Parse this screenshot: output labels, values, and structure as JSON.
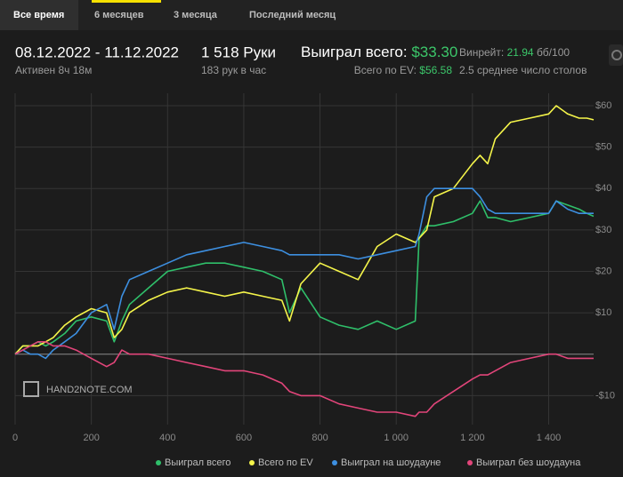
{
  "tabs": [
    "Все время",
    "6 месяцев",
    "3 месяца",
    "Последний месяц"
  ],
  "header": {
    "date_range": "08.12.2022 - 11.12.2022",
    "active": "Активен 8ч 18м",
    "hands": "1 518 Руки",
    "hands_per_hour": "183 рук в час",
    "won_label": "Выиграл всего:",
    "won_value": "$33.30",
    "ev_label": "Всего по EV:",
    "ev_value": "$56.58",
    "winrate_label": "Винрейт:",
    "winrate_value": "21.94",
    "winrate_unit": "бб/100",
    "tables": "2.5 среднее число столов"
  },
  "chart_data": {
    "type": "line",
    "watermark": "HAND2NOTE.COM",
    "x": [
      0,
      20,
      40,
      60,
      80,
      100,
      130,
      160,
      200,
      240,
      260,
      280,
      300,
      350,
      400,
      450,
      500,
      550,
      600,
      650,
      700,
      720,
      750,
      800,
      850,
      900,
      950,
      1000,
      1050,
      1060,
      1080,
      1100,
      1150,
      1200,
      1220,
      1240,
      1260,
      1300,
      1350,
      1400,
      1420,
      1450,
      1480,
      1500,
      1518
    ],
    "series": [
      {
        "name": "Выиграл всего",
        "color": "#2fbf6a",
        "values": [
          0,
          2,
          2,
          3,
          2,
          3,
          5,
          8,
          9,
          8,
          3,
          8,
          12,
          16,
          20,
          21,
          22,
          22,
          21,
          20,
          18,
          10,
          16,
          9,
          7,
          6,
          8,
          6,
          8,
          28,
          31,
          31,
          32,
          34,
          37,
          33,
          33,
          32,
          33,
          34,
          37,
          36,
          35,
          34,
          33.3
        ]
      },
      {
        "name": "Всего по EV",
        "color": "#f5f54a",
        "values": [
          0,
          2,
          2,
          2,
          3,
          4,
          7,
          9,
          11,
          10,
          4,
          6,
          10,
          13,
          15,
          16,
          15,
          14,
          15,
          14,
          13,
          8,
          17,
          22,
          20,
          18,
          26,
          29,
          27,
          28,
          30,
          38,
          40,
          46,
          48,
          46,
          52,
          56,
          57,
          58,
          60,
          58,
          57,
          57,
          56.58
        ]
      },
      {
        "name": "Выиграл на шоудауне",
        "color": "#3d8fe0",
        "values": [
          0,
          1,
          0,
          0,
          -1,
          1,
          3,
          5,
          10,
          12,
          6,
          14,
          18,
          20,
          22,
          24,
          25,
          26,
          27,
          26,
          25,
          24,
          24,
          24,
          24,
          23,
          24,
          25,
          26,
          29,
          38,
          40,
          40,
          40,
          38,
          35,
          34,
          34,
          34,
          34,
          37,
          35,
          34,
          34,
          34
        ]
      },
      {
        "name": "Выиграл без шоудауна",
        "color": "#e2457a",
        "values": [
          0,
          1,
          2,
          3,
          3,
          2,
          2,
          1,
          -1,
          -3,
          -2,
          1,
          0,
          0,
          -1,
          -2,
          -3,
          -4,
          -4,
          -5,
          -7,
          -9,
          -10,
          -10,
          -12,
          -13,
          -14,
          -14,
          -15,
          -14,
          -14,
          -12,
          -9,
          -6,
          -5,
          -5,
          -4,
          -2,
          -1,
          0,
          0,
          -1,
          -1,
          -1,
          -1
        ]
      }
    ],
    "xlim": [
      0,
      1518
    ],
    "ylim": [
      -17,
      63
    ],
    "xticks": [
      0,
      200,
      400,
      600,
      800,
      {
        "value": 1000,
        "label": "1 000"
      },
      {
        "value": 1200,
        "label": "1 200"
      },
      {
        "value": 1400,
        "label": "1 400"
      }
    ],
    "yticks": [
      {
        "value": 60,
        "label": "$60"
      },
      {
        "value": 50,
        "label": "$50"
      },
      {
        "value": 40,
        "label": "$40"
      },
      {
        "value": 30,
        "label": "$30"
      },
      {
        "value": 20,
        "label": "$20"
      },
      {
        "value": 10,
        "label": "$10"
      },
      {
        "value": -10,
        "label": "-$10"
      }
    ],
    "grid": true
  }
}
